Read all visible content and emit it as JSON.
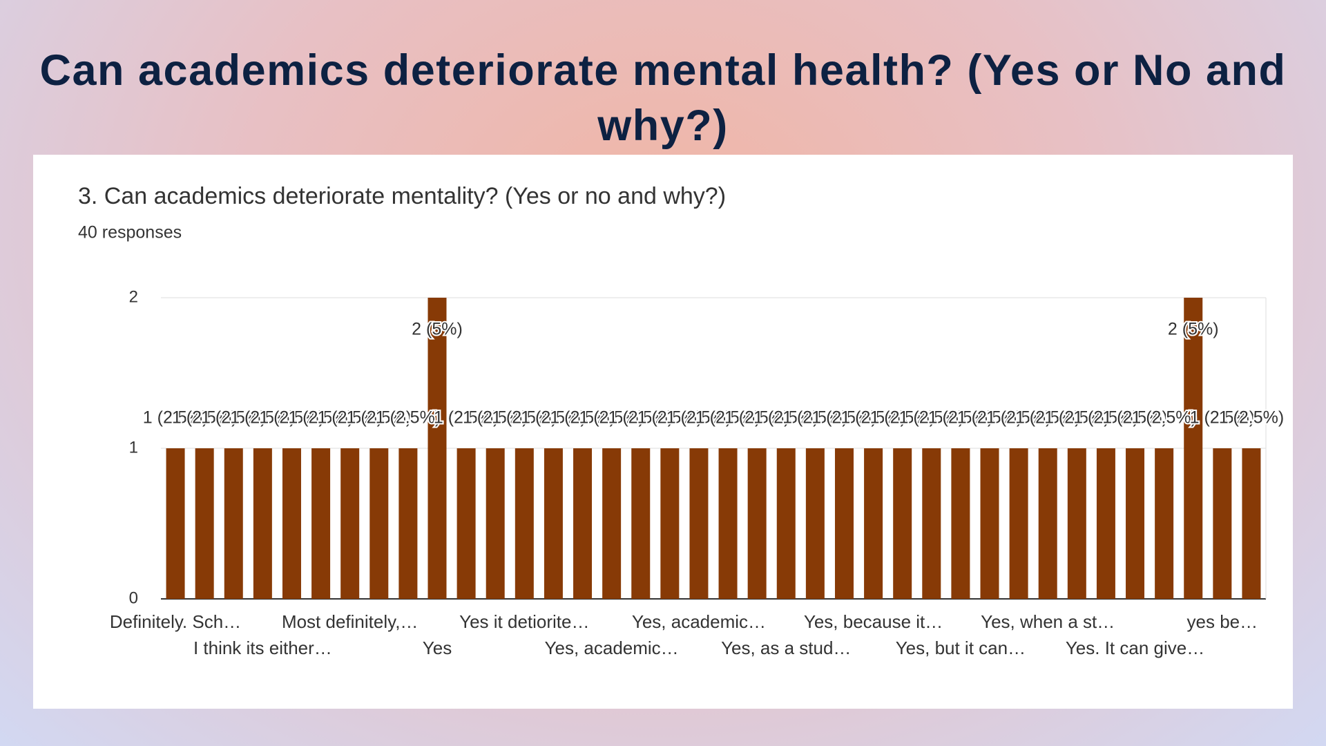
{
  "heading": "Can academics deteriorate mental health?  (Yes or No and why?)",
  "chart_data": {
    "type": "bar",
    "title": "3. Can academics deteriorate mentality? (Yes or no and why?)",
    "subtitle": "40 responses",
    "categories": [
      "Definitely. Sch…",
      null,
      null,
      "I think its either…",
      null,
      null,
      "Most definitely,…",
      null,
      null,
      "Yes",
      null,
      null,
      "Yes it detiorite…",
      null,
      null,
      "Yes, academic…",
      null,
      null,
      "Yes, academic…",
      null,
      null,
      "Yes, as a stud…",
      null,
      null,
      "Yes, because it…",
      null,
      null,
      "Yes, but it can…",
      null,
      null,
      "Yes, when a st…",
      null,
      null,
      "Yes. It can give…",
      null,
      null,
      "yes be…",
      null
    ],
    "values": [
      1,
      1,
      1,
      1,
      1,
      1,
      1,
      1,
      1,
      2,
      1,
      1,
      1,
      1,
      1,
      1,
      1,
      1,
      1,
      1,
      1,
      1,
      1,
      1,
      1,
      1,
      1,
      1,
      1,
      1,
      1,
      1,
      1,
      1,
      1,
      2,
      1,
      1
    ],
    "value_labels": [
      "1 (2.5%)",
      "1 (2.5%)",
      "1 (2.5%)",
      "1 (2.5%)",
      "1 (2.5%)",
      "1 (2.5%)",
      "1 (2.5%)",
      "1 (2.5%)",
      "1 (2.5%)",
      "2 (5%)",
      "1 (2.5%)",
      "1 (2.5%)",
      "1 (2.5%)",
      "1 (2.5%)",
      "1 (2.5%)",
      "1 (2.5%)",
      "1 (2.5%)",
      "1 (2.5%)",
      "1 (2.5%)",
      "1 (2.5%)",
      "1 (2.5%)",
      "1 (2.5%)",
      "1 (2.5%)",
      "1 (2.5%)",
      "1 (2.5%)",
      "1 (2.5%)",
      "1 (2.5%)",
      "1 (2.5%)",
      "1 (2.5%)",
      "1 (2.5%)",
      "1 (2.5%)",
      "1 (2.5%)",
      "1 (2.5%)",
      "1 (2.5%)",
      "1 (2.5%)",
      "2 (5%)",
      "1 (2.5%)",
      "1 (2.5%)"
    ],
    "color": "#873a06",
    "ylim": [
      0,
      2
    ],
    "yticks": [
      0,
      1,
      2
    ],
    "grid": true
  }
}
